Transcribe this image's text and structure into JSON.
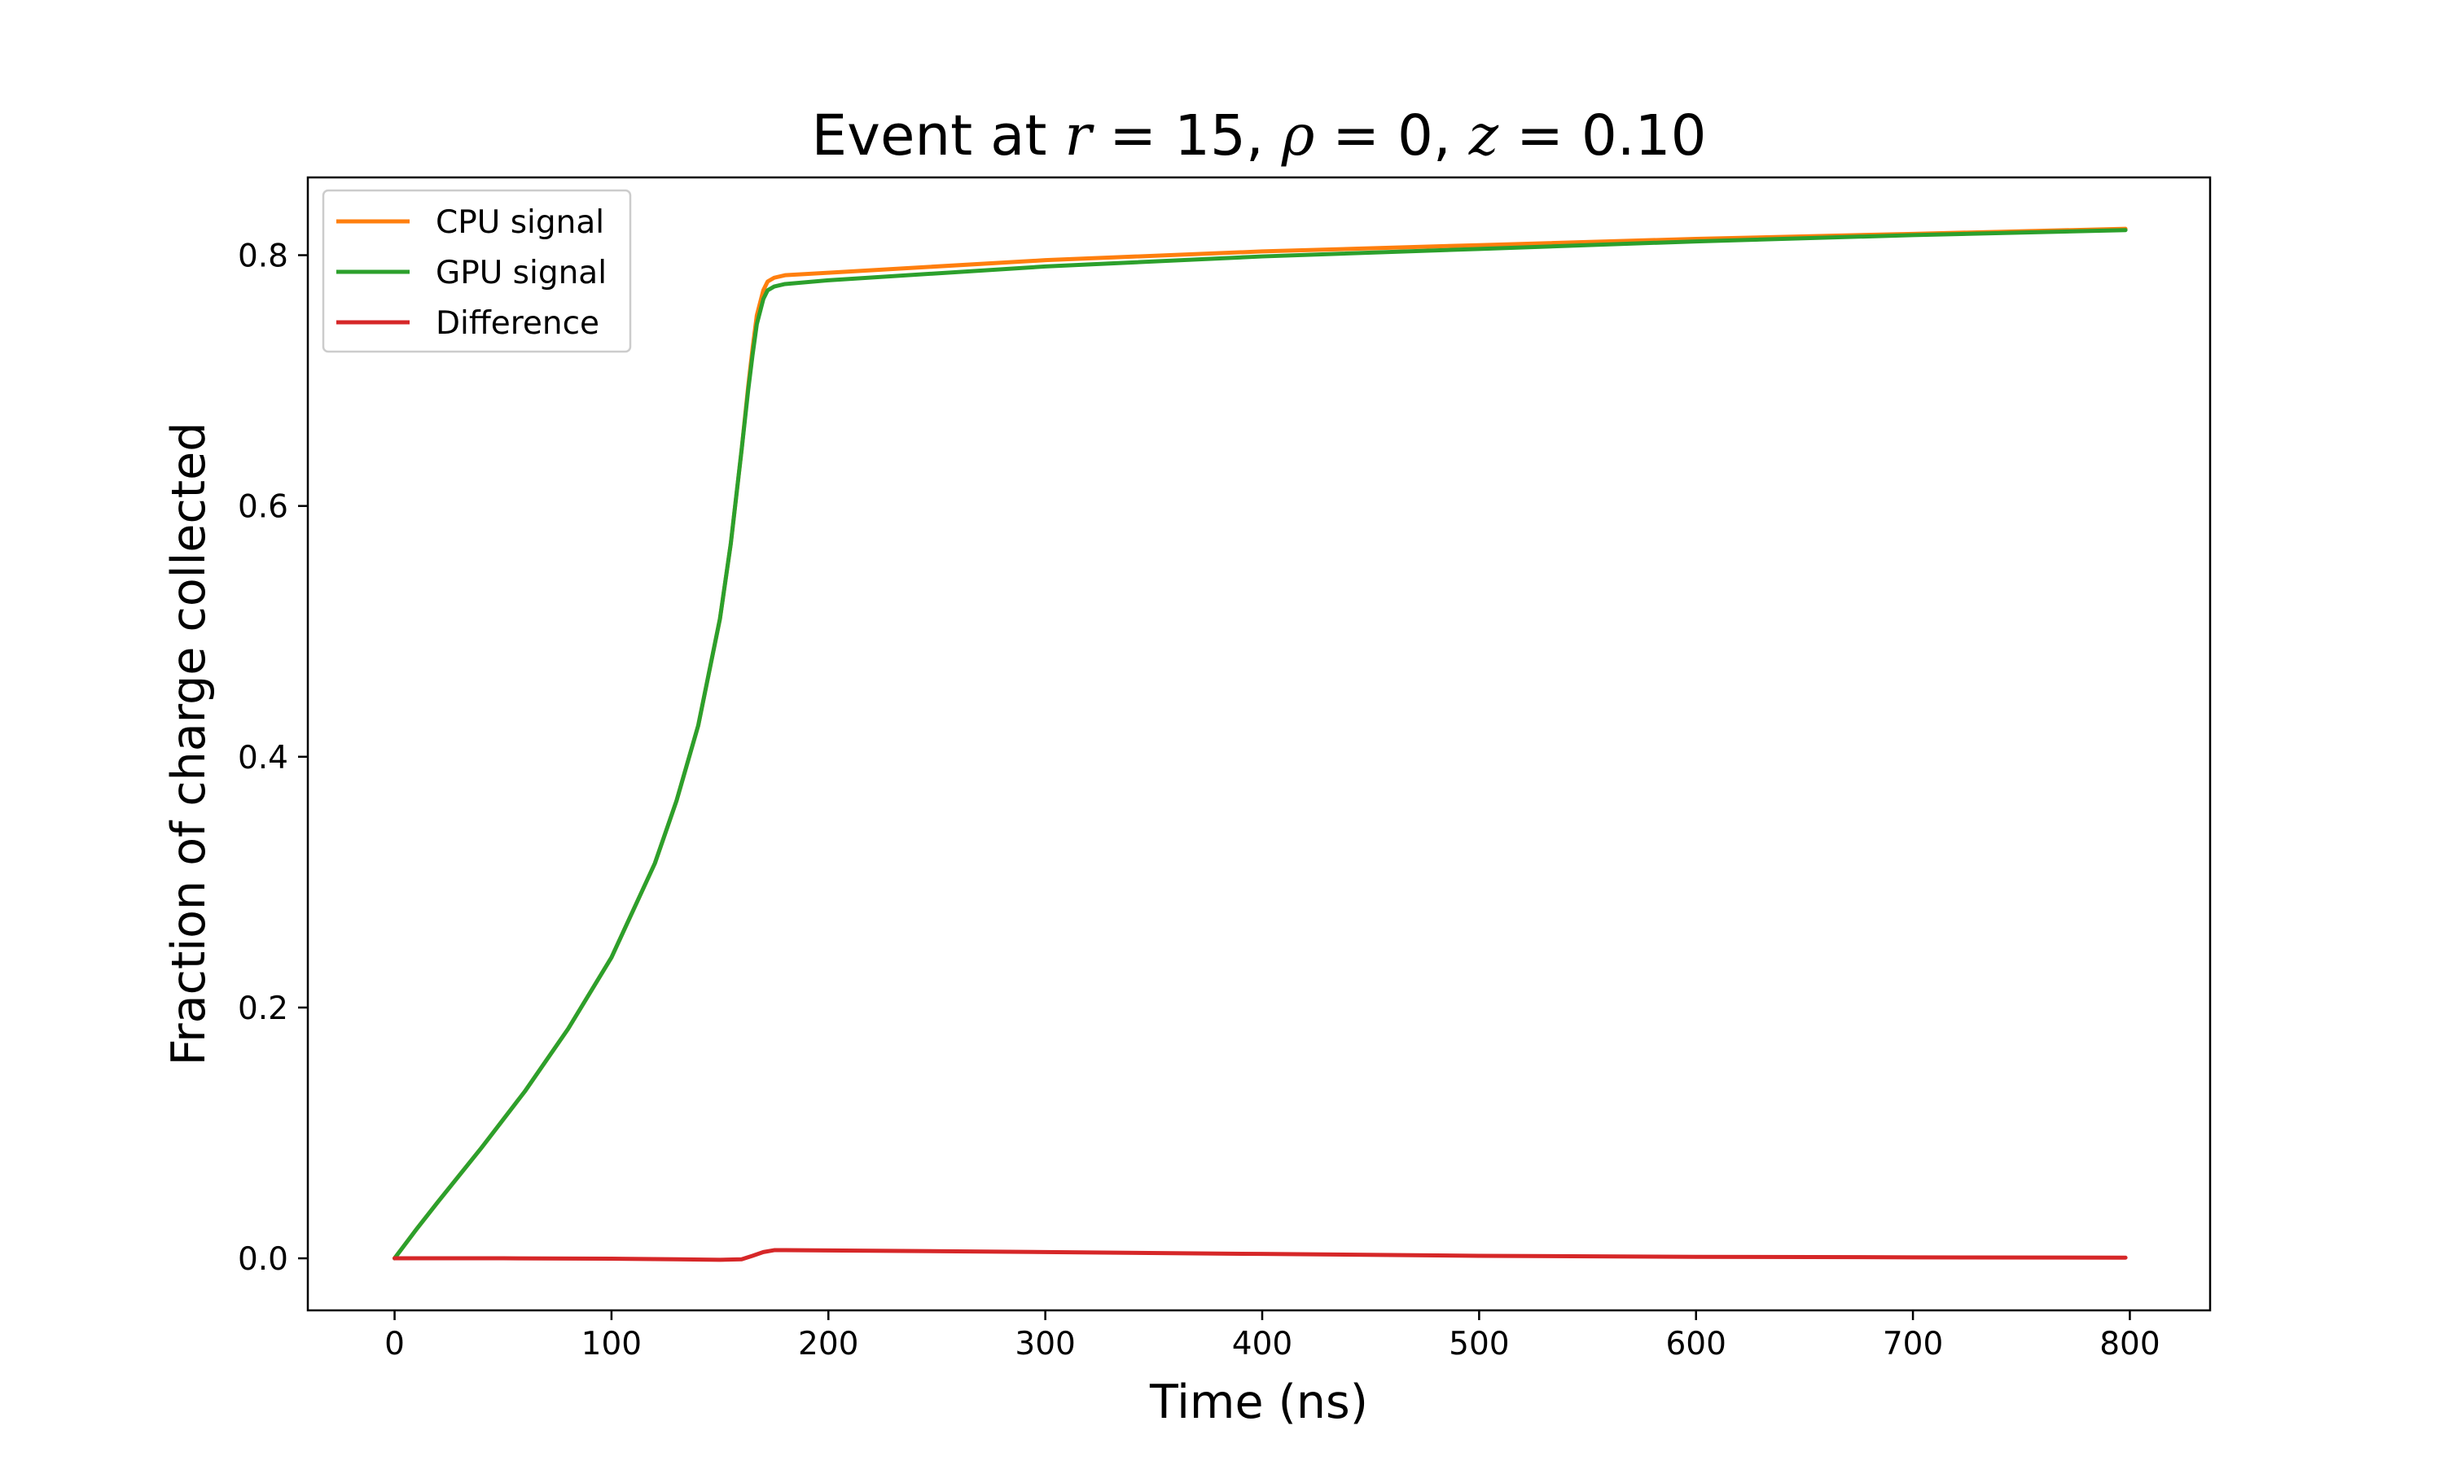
{
  "chart_data": {
    "type": "line",
    "title": {
      "prefix": "Event at ",
      "r_symbol": "r",
      "r_value": "15",
      "rho_symbol": "ρ",
      "rho_value": "0",
      "z_symbol": "z",
      "z_value": "0.10"
    },
    "xlabel": "Time (ns)",
    "ylabel": "Fraction of charge collected",
    "xlim": [
      -40,
      837
    ],
    "ylim": [
      -0.0415,
      0.862
    ],
    "xticks": [
      0,
      100,
      200,
      300,
      400,
      500,
      600,
      700,
      800
    ],
    "yticks": [
      0.0,
      0.2,
      0.4,
      0.6,
      0.8
    ],
    "grid": false,
    "legend_position": "top-left",
    "series": [
      {
        "name": "CPU signal",
        "color": "#ff7f0e",
        "x": [
          0,
          10,
          20,
          40,
          60,
          80,
          100,
          120,
          130,
          140,
          150,
          155,
          160,
          163,
          165,
          167,
          170,
          172,
          175,
          180,
          200,
          300,
          400,
          500,
          600,
          700,
          798
        ],
        "y": [
          0.0,
          0.023,
          0.045,
          0.088,
          0.133,
          0.183,
          0.24,
          0.315,
          0.365,
          0.425,
          0.51,
          0.57,
          0.645,
          0.695,
          0.725,
          0.752,
          0.772,
          0.779,
          0.782,
          0.784,
          0.786,
          0.796,
          0.803,
          0.808,
          0.813,
          0.817,
          0.821
        ]
      },
      {
        "name": "GPU signal",
        "color": "#2ca02c",
        "x": [
          0,
          10,
          20,
          40,
          60,
          80,
          100,
          120,
          130,
          140,
          150,
          155,
          160,
          163,
          165,
          167,
          170,
          172,
          175,
          180,
          200,
          300,
          400,
          500,
          600,
          700,
          798
        ],
        "y": [
          0.0,
          0.023,
          0.045,
          0.088,
          0.133,
          0.183,
          0.24,
          0.315,
          0.365,
          0.425,
          0.51,
          0.57,
          0.645,
          0.692,
          0.72,
          0.745,
          0.765,
          0.772,
          0.775,
          0.777,
          0.78,
          0.791,
          0.799,
          0.805,
          0.811,
          0.816,
          0.82
        ]
      },
      {
        "name": "Difference",
        "color": "#d62728",
        "x": [
          0,
          50,
          100,
          130,
          150,
          160,
          165,
          170,
          175,
          180,
          200,
          300,
          400,
          500,
          600,
          700,
          798
        ],
        "y": [
          0.0,
          0.0,
          -0.0003,
          -0.0008,
          -0.0012,
          -0.0008,
          0.002,
          0.005,
          0.0065,
          0.0065,
          0.0063,
          0.005,
          0.0035,
          0.002,
          0.0012,
          0.0008,
          0.0005
        ]
      }
    ]
  }
}
